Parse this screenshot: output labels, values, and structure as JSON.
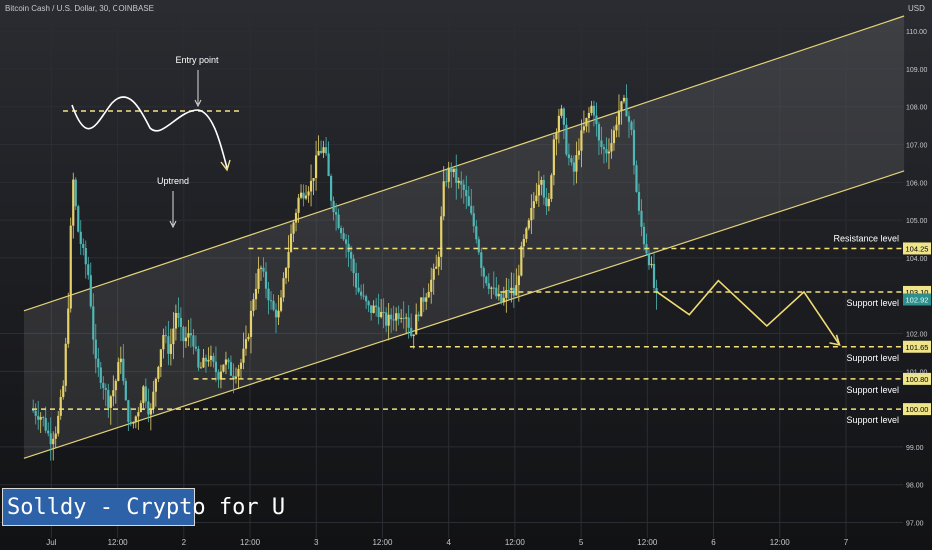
{
  "header": {
    "title": "Bitcoin Cash / U.S. Dollar, 30, COINBASE",
    "currency": "USD"
  },
  "brand": {
    "label": "Solldy - Crypto for U"
  },
  "chart_data": {
    "type": "candlestick",
    "symbol": "Bitcoin Cash / U.S. Dollar",
    "interval": "30",
    "exchange": "COINBASE",
    "yrange": [
      96.6,
      110.4
    ],
    "y_ticks": [
      "110.00",
      "109.00",
      "108.00",
      "107.00",
      "106.00",
      "105.00",
      "104.00",
      "102.00",
      "101.00",
      "99.00",
      "98.00",
      "97.00"
    ],
    "x_ticks": [
      {
        "label": "Jul",
        "t": 0.12
      },
      {
        "label": "12:00",
        "t": 0.53
      },
      {
        "label": "2",
        "t": 0.94
      },
      {
        "label": "12:00",
        "t": 1.35
      },
      {
        "label": "3",
        "t": 1.76
      },
      {
        "label": "12:00",
        "t": 2.17
      },
      {
        "label": "4",
        "t": 2.58
      },
      {
        "label": "12:00",
        "t": 2.99
      },
      {
        "label": "5",
        "t": 3.4
      },
      {
        "label": "12:00",
        "t": 3.81
      },
      {
        "label": "6",
        "t": 4.22
      },
      {
        "label": "12:00",
        "t": 4.63
      },
      {
        "label": "7",
        "t": 5.04
      }
    ],
    "price_path": [
      [
        0.0,
        100.0
      ],
      [
        0.07,
        99.8
      ],
      [
        0.12,
        99.2
      ],
      [
        0.16,
        99.5
      ],
      [
        0.2,
        100.5
      ],
      [
        0.23,
        102.5
      ],
      [
        0.26,
        106.2
      ],
      [
        0.29,
        104.8
      ],
      [
        0.32,
        104.2
      ],
      [
        0.36,
        103.5
      ],
      [
        0.4,
        101.2
      ],
      [
        0.44,
        100.8
      ],
      [
        0.48,
        100.2
      ],
      [
        0.52,
        100.6
      ],
      [
        0.56,
        101.5
      ],
      [
        0.58,
        100.3
      ],
      [
        0.62,
        99.5
      ],
      [
        0.66,
        99.9
      ],
      [
        0.7,
        100.6
      ],
      [
        0.74,
        99.8
      ],
      [
        0.78,
        101.0
      ],
      [
        0.82,
        102.0
      ],
      [
        0.86,
        101.5
      ],
      [
        0.9,
        102.6
      ],
      [
        0.94,
        101.8
      ],
      [
        1.0,
        102.0
      ],
      [
        1.04,
        101.0
      ],
      [
        1.1,
        101.4
      ],
      [
        1.16,
        100.9
      ],
      [
        1.2,
        101.3
      ],
      [
        1.25,
        100.9
      ],
      [
        1.3,
        101.2
      ],
      [
        1.34,
        101.8
      ],
      [
        1.38,
        103.0
      ],
      [
        1.42,
        103.8
      ],
      [
        1.46,
        103.2
      ],
      [
        1.5,
        102.6
      ],
      [
        1.54,
        102.5
      ],
      [
        1.58,
        103.8
      ],
      [
        1.62,
        104.8
      ],
      [
        1.66,
        105.6
      ],
      [
        1.7,
        105.8
      ],
      [
        1.74,
        106.0
      ],
      [
        1.78,
        106.8
      ],
      [
        1.82,
        106.9
      ],
      [
        1.86,
        105.6
      ],
      [
        1.9,
        105.0
      ],
      [
        1.94,
        104.6
      ],
      [
        1.98,
        104.0
      ],
      [
        2.02,
        103.2
      ],
      [
        2.06,
        102.9
      ],
      [
        2.1,
        102.6
      ],
      [
        2.14,
        102.7
      ],
      [
        2.2,
        102.3
      ],
      [
        2.26,
        102.5
      ],
      [
        2.32,
        102.6
      ],
      [
        2.36,
        101.9
      ],
      [
        2.4,
        102.6
      ],
      [
        2.44,
        103.0
      ],
      [
        2.48,
        103.4
      ],
      [
        2.52,
        103.8
      ],
      [
        2.56,
        106.0
      ],
      [
        2.6,
        106.4
      ],
      [
        2.64,
        106.0
      ],
      [
        2.68,
        105.8
      ],
      [
        2.72,
        105.2
      ],
      [
        2.76,
        104.6
      ],
      [
        2.8,
        103.6
      ],
      [
        2.84,
        103.3
      ],
      [
        2.88,
        103.0
      ],
      [
        2.92,
        102.8
      ],
      [
        2.96,
        103.2
      ],
      [
        3.0,
        103.0
      ],
      [
        3.04,
        104.2
      ],
      [
        3.08,
        104.8
      ],
      [
        3.12,
        105.6
      ],
      [
        3.16,
        106.3
      ],
      [
        3.2,
        105.0
      ],
      [
        3.24,
        107.2
      ],
      [
        3.28,
        108.0
      ],
      [
        3.32,
        106.8
      ],
      [
        3.36,
        106.2
      ],
      [
        3.4,
        107.1
      ],
      [
        3.44,
        107.6
      ],
      [
        3.48,
        108.1
      ],
      [
        3.52,
        107.0
      ],
      [
        3.56,
        106.8
      ],
      [
        3.6,
        107.1
      ],
      [
        3.64,
        107.9
      ],
      [
        3.68,
        108.1
      ],
      [
        3.72,
        107.3
      ],
      [
        3.76,
        105.3
      ],
      [
        3.8,
        104.4
      ],
      [
        3.84,
        103.8
      ],
      [
        3.87,
        102.9
      ]
    ],
    "levels": [
      {
        "label": "Resistance level",
        "value": 104.25,
        "badge": "104.25"
      },
      {
        "label": "Support level",
        "value": 103.1,
        "badge": "103.10"
      },
      {
        "label": "Support level",
        "value": 101.65,
        "badge": "101.65"
      },
      {
        "label": "Support level",
        "value": 100.8,
        "badge": "100.80"
      },
      {
        "label": "Support level",
        "value": 100.0,
        "badge": "100.00"
      }
    ],
    "last_price": {
      "value": 102.9,
      "badge": "102.92"
    },
    "channel": {
      "label": "Uptrend",
      "upper": [
        [
          -0.05,
          102.6
        ],
        [
          5.4,
          110.4
        ]
      ],
      "lower": [
        [
          -0.05,
          98.7
        ],
        [
          5.4,
          106.3
        ]
      ]
    },
    "annotations": {
      "entry_point": "Entry point",
      "uptrend": "Uptrend",
      "projection": [
        [
          3.87,
          103.1
        ],
        [
          4.07,
          102.5
        ],
        [
          4.25,
          103.4
        ],
        [
          4.55,
          102.2
        ],
        [
          4.78,
          103.1
        ],
        [
          5.0,
          101.7
        ]
      ]
    },
    "colors": {
      "up": "#e6d26a",
      "down": "#4fb7b5",
      "level": "#f3e07a",
      "channel": "#e2d27a",
      "projection": "#f1dc74",
      "badge": "#f0e48a",
      "last_badge": "#2f8f8d"
    }
  }
}
